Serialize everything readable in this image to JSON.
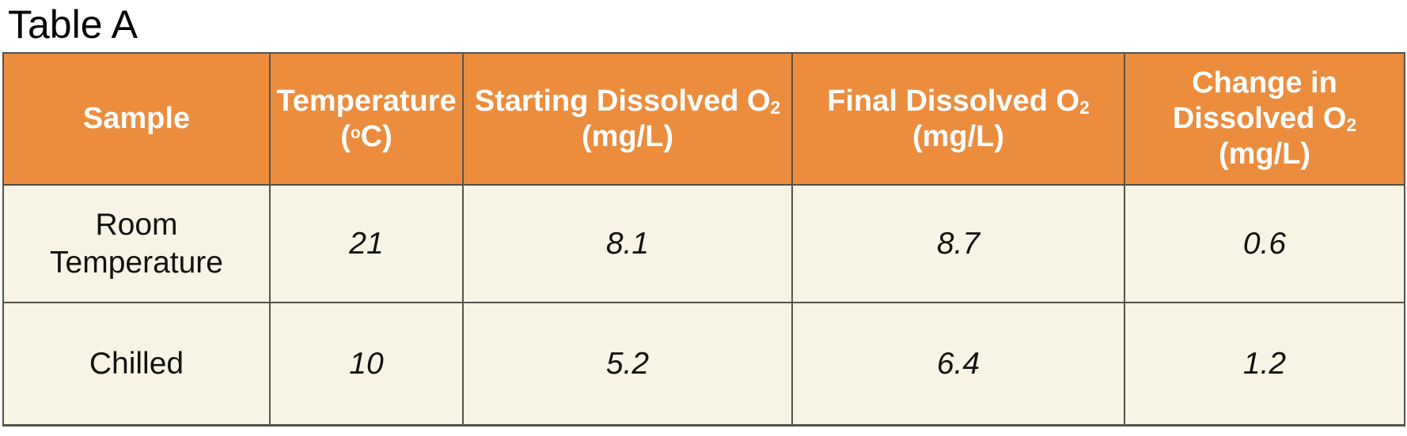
{
  "title": "Table A",
  "colors": {
    "page_bg": "#FFFFFF",
    "title_text": "#000000",
    "header_bg": "#EC8D3E",
    "header_text": "#FFFFFF",
    "body_bg": "#F7F4E5",
    "body_text": "#121212",
    "border": "#55524B"
  },
  "table": {
    "header": {
      "sample": {
        "segments": [
          {
            "text": "Sample"
          }
        ]
      },
      "temperature": {
        "segments": [
          {
            "text": "Temperature"
          },
          {
            "br": true
          },
          {
            "text": "("
          },
          {
            "text": "o",
            "sup": true
          },
          {
            "text": "C)"
          }
        ]
      },
      "starting": {
        "segments": [
          {
            "text": "Starting Dissolved O"
          },
          {
            "text": "2",
            "sub": true
          },
          {
            "br": true
          },
          {
            "text": "(mg/L)"
          }
        ]
      },
      "final": {
        "segments": [
          {
            "text": "Final Dissolved O"
          },
          {
            "text": "2",
            "sub": true
          },
          {
            "br": true
          },
          {
            "text": "(mg/L)"
          }
        ]
      },
      "change": {
        "segments": [
          {
            "text": "Change in"
          },
          {
            "br": true
          },
          {
            "text": "Dissolved O"
          },
          {
            "text": "2",
            "sub": true
          },
          {
            "br": true
          },
          {
            "text": "(mg/L)"
          }
        ]
      }
    },
    "rows": [
      {
        "sample": "Room Temperature",
        "temperature": "21",
        "starting": "8.1",
        "final": "8.7",
        "change": "0.6"
      },
      {
        "sample": "Chilled",
        "temperature": "10",
        "starting": "5.2",
        "final": "6.4",
        "change": "1.2"
      }
    ]
  },
  "chart_data": {
    "type": "table",
    "title": "Table A",
    "columns": [
      "Sample",
      "Temperature (°C)",
      "Starting Dissolved O₂ (mg/L)",
      "Final Dissolved O₂ (mg/L)",
      "Change in Dissolved O₂ (mg/L)"
    ],
    "rows": [
      [
        "Room Temperature",
        21,
        8.1,
        8.7,
        0.6
      ],
      [
        "Chilled",
        10,
        5.2,
        6.4,
        1.2
      ]
    ]
  }
}
